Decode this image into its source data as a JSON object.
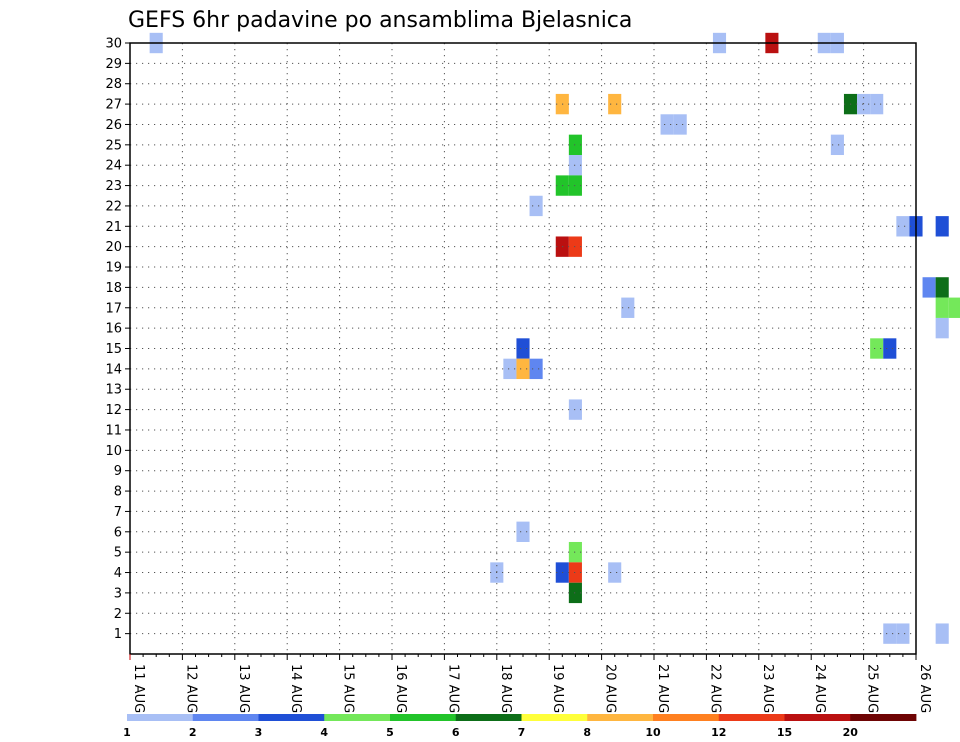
{
  "chart_data": {
    "type": "heatmap",
    "title": "GEFS 6hr padavine po ansamblima Bjelasnica",
    "xlabel": "",
    "ylabel": "",
    "y_ticks": [
      "1",
      "2",
      "3",
      "4",
      "5",
      "6",
      "7",
      "8",
      "9",
      "10",
      "11",
      "12",
      "13",
      "14",
      "15",
      "16",
      "17",
      "18",
      "19",
      "20",
      "21",
      "22",
      "23",
      "24",
      "25",
      "26",
      "27",
      "28",
      "29",
      "30"
    ],
    "x_ticks": [
      "11 AUG",
      "12 AUG",
      "13 AUG",
      "14 AUG",
      "15 AUG",
      "16 AUG",
      "17 AUG",
      "18 AUG",
      "19 AUG",
      "20 AUG",
      "21 AUG",
      "22 AUG",
      "23 AUG",
      "24 AUG",
      "25 AUG",
      "26 AUG"
    ],
    "x_range_days": [
      11,
      26
    ],
    "y_range": [
      0,
      30
    ],
    "grid": true,
    "colorbar": {
      "labels": [
        "1",
        "2",
        "3",
        "4",
        "5",
        "6",
        "7",
        "8",
        "10",
        "12",
        "15",
        "20"
      ],
      "colors": [
        "#a8bff5",
        "#5f86f0",
        "#1f4fd6",
        "#74e85a",
        "#22c42a",
        "#0d6e18",
        "#ffff3a",
        "#ffb640",
        "#ff8020",
        "#ec3a18",
        "#ba1010",
        "#6e0404"
      ]
    },
    "cells": [
      {
        "day": 11.5,
        "member": 30,
        "color": "#a8bff5"
      },
      {
        "day": 22.25,
        "member": 30,
        "color": "#a8bff5"
      },
      {
        "day": 23.25,
        "member": 30,
        "color": "#ba1010"
      },
      {
        "day": 24.25,
        "member": 30,
        "color": "#a8bff5"
      },
      {
        "day": 24.5,
        "member": 30,
        "color": "#a8bff5"
      },
      {
        "day": 19.25,
        "member": 27,
        "color": "#ffb640"
      },
      {
        "day": 20.25,
        "member": 27,
        "color": "#ffb640"
      },
      {
        "day": 24.75,
        "member": 27,
        "color": "#0d6e18"
      },
      {
        "day": 25.0,
        "member": 27,
        "color": "#a8bff5"
      },
      {
        "day": 25.25,
        "member": 27,
        "color": "#a8bff5"
      },
      {
        "day": 21.25,
        "member": 26,
        "color": "#a8bff5"
      },
      {
        "day": 21.5,
        "member": 26,
        "color": "#a8bff5"
      },
      {
        "day": 19.5,
        "member": 25,
        "color": "#22c42a"
      },
      {
        "day": 24.5,
        "member": 25,
        "color": "#a8bff5"
      },
      {
        "day": 19.5,
        "member": 24,
        "color": "#a8bff5"
      },
      {
        "day": 19.25,
        "member": 23,
        "color": "#22c42a"
      },
      {
        "day": 19.5,
        "member": 23,
        "color": "#22c42a"
      },
      {
        "day": 18.75,
        "member": 22,
        "color": "#a8bff5"
      },
      {
        "day": 25.75,
        "member": 21,
        "color": "#a8bff5"
      },
      {
        "day": 26.0,
        "member": 21,
        "color": "#1f4fd6"
      },
      {
        "day": 26.5,
        "member": 21,
        "color": "#1f4fd6"
      },
      {
        "day": 19.25,
        "member": 20,
        "color": "#ba1010"
      },
      {
        "day": 19.5,
        "member": 20,
        "color": "#ec3a18"
      },
      {
        "day": 26.25,
        "member": 18,
        "color": "#5f86f0"
      },
      {
        "day": 26.5,
        "member": 18,
        "color": "#0d6e18"
      },
      {
        "day": 26.5,
        "member": 17,
        "color": "#74e85a"
      },
      {
        "day": 26.75,
        "member": 17,
        "color": "#74e85a"
      },
      {
        "day": 20.5,
        "member": 17,
        "color": "#a8bff5"
      },
      {
        "day": 26.5,
        "member": 16,
        "color": "#a8bff5"
      },
      {
        "day": 18.5,
        "member": 15,
        "color": "#1f4fd6"
      },
      {
        "day": 25.25,
        "member": 15,
        "color": "#74e85a"
      },
      {
        "day": 25.5,
        "member": 15,
        "color": "#1f4fd6"
      },
      {
        "day": 18.25,
        "member": 14,
        "color": "#a8bff5"
      },
      {
        "day": 18.5,
        "member": 14,
        "color": "#ffb640"
      },
      {
        "day": 18.75,
        "member": 14,
        "color": "#5f86f0"
      },
      {
        "day": 19.5,
        "member": 12,
        "color": "#a8bff5"
      },
      {
        "day": 18.5,
        "member": 6,
        "color": "#a8bff5"
      },
      {
        "day": 19.5,
        "member": 5,
        "color": "#74e85a"
      },
      {
        "day": 18.0,
        "member": 4,
        "color": "#a8bff5"
      },
      {
        "day": 19.25,
        "member": 4,
        "color": "#1f4fd6"
      },
      {
        "day": 19.5,
        "member": 4,
        "color": "#ec3a18"
      },
      {
        "day": 20.25,
        "member": 4,
        "color": "#a8bff5"
      },
      {
        "day": 19.5,
        "member": 3,
        "color": "#0d6e18"
      },
      {
        "day": 25.5,
        "member": 1,
        "color": "#a8bff5"
      },
      {
        "day": 25.75,
        "member": 1,
        "color": "#a8bff5"
      },
      {
        "day": 26.5,
        "member": 1,
        "color": "#a8bff5"
      }
    ]
  }
}
